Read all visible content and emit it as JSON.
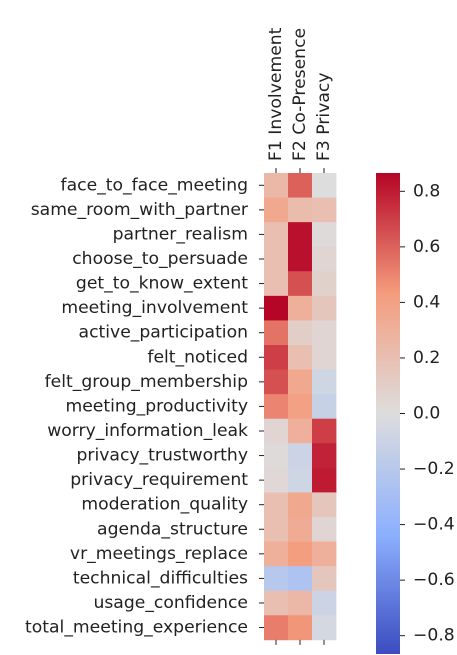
{
  "chart_data": {
    "type": "heatmap",
    "columns": [
      "F1 Involvement",
      "F2 Co-Presence",
      "F3 Privacy"
    ],
    "rows": [
      "face_to_face_meeting",
      "same_room_with_partner",
      "partner_realism",
      "choose_to_persuade",
      "get_to_know_extent",
      "meeting_involvement",
      "active_participation",
      "felt_noticed",
      "felt_group_membership",
      "meeting_productivity",
      "worry_information_leak",
      "privacy_trustworthy",
      "privacy_requirement",
      "moderation_quality",
      "agenda_structure",
      "vr_meetings_replace",
      "technical_difficulties",
      "usage_confidence",
      "total_meeting_experience"
    ],
    "values": [
      [
        0.25,
        0.6,
        0.0
      ],
      [
        0.35,
        0.22,
        0.2
      ],
      [
        0.2,
        0.83,
        0.02
      ],
      [
        0.2,
        0.83,
        0.05
      ],
      [
        0.2,
        0.65,
        0.08
      ],
      [
        0.86,
        0.3,
        0.15
      ],
      [
        0.55,
        0.1,
        0.05
      ],
      [
        0.7,
        0.2,
        0.05
      ],
      [
        0.65,
        0.35,
        -0.08
      ],
      [
        0.5,
        0.4,
        -0.12
      ],
      [
        0.05,
        0.3,
        0.7
      ],
      [
        0.02,
        -0.1,
        0.78
      ],
      [
        0.03,
        -0.08,
        0.8
      ],
      [
        0.2,
        0.35,
        0.15
      ],
      [
        0.2,
        0.33,
        0.05
      ],
      [
        0.3,
        0.42,
        0.3
      ],
      [
        -0.2,
        -0.25,
        0.15
      ],
      [
        0.2,
        0.25,
        -0.1
      ],
      [
        0.52,
        0.45,
        -0.05
      ]
    ],
    "colorbar": {
      "min": -0.866,
      "max": 0.866,
      "ticks": [
        0.8,
        0.6,
        0.4,
        0.2,
        0.0,
        -0.2,
        -0.4,
        -0.6,
        -0.8
      ],
      "tick_labels": [
        "0.8",
        "0.6",
        "0.4",
        "0.2",
        "0.0",
        "−0.2",
        "−0.4",
        "−0.6",
        "−0.8"
      ],
      "colormap": "coolwarm",
      "placement": "right"
    },
    "title": "",
    "xlabel": "",
    "ylabel": ""
  }
}
